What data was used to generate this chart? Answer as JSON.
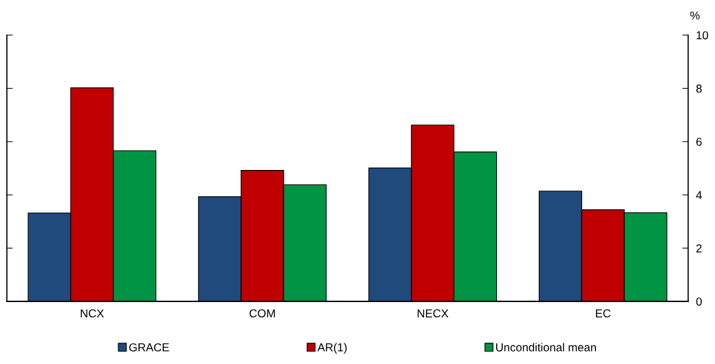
{
  "chart_data": {
    "type": "bar",
    "categories": [
      "NCX",
      "COM",
      "NECX",
      "EC"
    ],
    "series": [
      {
        "name": "GRACE",
        "color": "#204a7c",
        "values": [
          3.32,
          3.93,
          5.01,
          4.14
        ]
      },
      {
        "name": "AR(1)",
        "color": "#c00000",
        "values": [
          8.02,
          4.92,
          6.62,
          3.44
        ]
      },
      {
        "name": "Unconditional mean",
        "color": "#009444",
        "values": [
          5.66,
          4.38,
          5.61,
          3.33
        ]
      }
    ],
    "ylabel": "%",
    "ylim": [
      0,
      10
    ],
    "yticks": [
      0,
      2,
      4,
      6,
      8,
      10
    ],
    "grid": false,
    "legend": "bottom"
  }
}
